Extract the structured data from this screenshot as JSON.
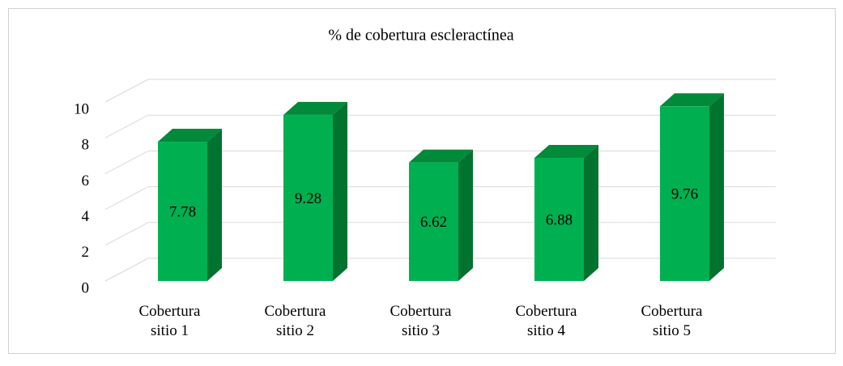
{
  "chart_data": {
    "type": "bar3d",
    "title": "% de cobertura escleractínea",
    "categories": [
      "Cobertura sitio 1",
      "Cobertura sitio 2",
      "Cobertura sitio 3",
      "Cobertura sitio 4",
      "Cobertura sitio 5"
    ],
    "values": [
      7.78,
      9.28,
      6.62,
      6.88,
      9.76
    ],
    "color": "#00b050",
    "ylim": [
      0,
      10
    ],
    "yticks": [
      0,
      2,
      4,
      6,
      8,
      10
    ],
    "grid": true
  }
}
